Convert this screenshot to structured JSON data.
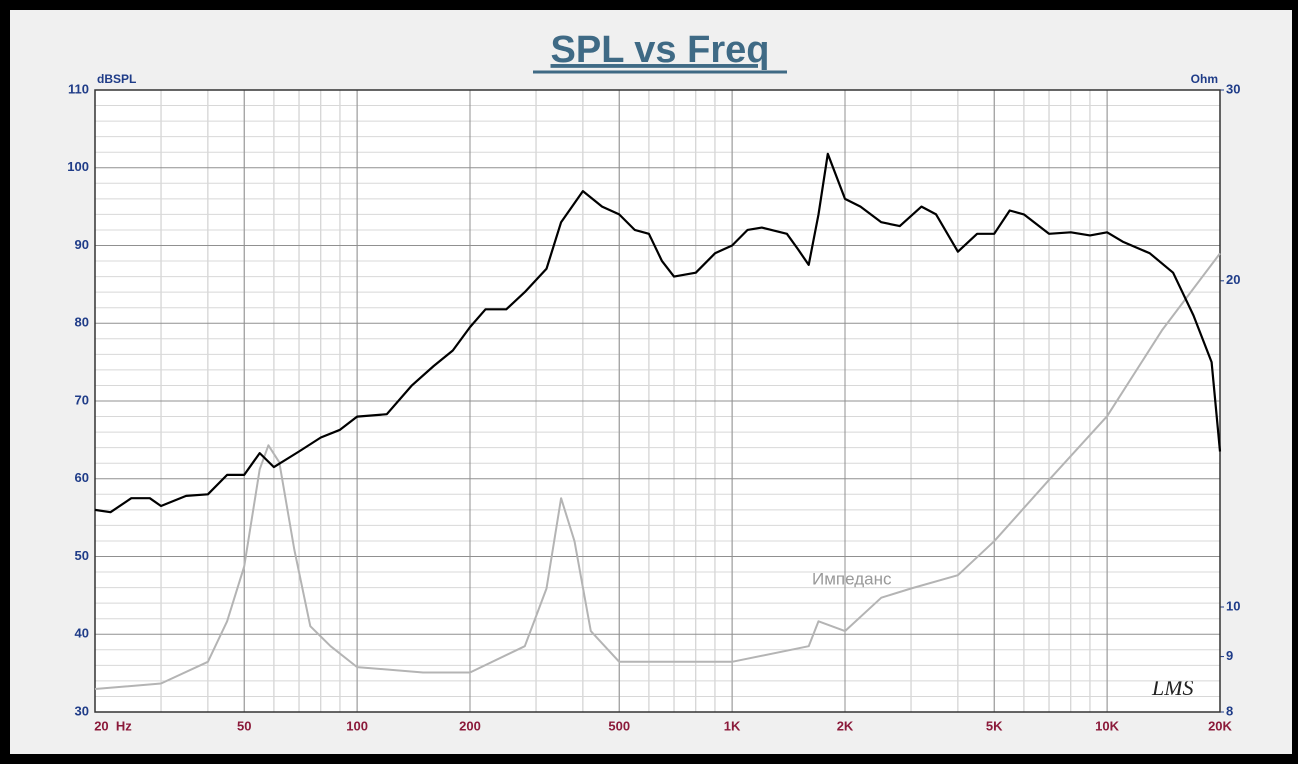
{
  "chart_data": {
    "type": "line",
    "title": "SPL vs Freq",
    "y_label": "dBSPL",
    "y2_label": "Ohm",
    "annotation": "Импеданс",
    "logo": "LMS",
    "xlog": true,
    "y2log": true,
    "grid": true,
    "xlim": [
      20,
      20000
    ],
    "xticks": [
      {
        "value": 20,
        "label": "20  Hz"
      },
      50,
      100,
      200,
      500,
      {
        "value": 1000,
        "label": "1K"
      },
      {
        "value": 2000,
        "label": "2K"
      },
      {
        "value": 5000,
        "label": "5K"
      },
      {
        "value": 10000,
        "label": "10K"
      },
      {
        "value": 20000,
        "label": "20K"
      }
    ],
    "ylim": [
      30,
      110
    ],
    "yticks": [
      30,
      40,
      50,
      60,
      70,
      80,
      90,
      100,
      110
    ],
    "y2lim": [
      8,
      30
    ],
    "y2ticks": [
      8,
      9,
      10,
      20,
      30
    ],
    "series": [
      {
        "name": "SPL",
        "color": "#000000",
        "x": [
          20,
          22,
          25,
          28,
          30,
          35,
          40,
          45,
          50,
          55,
          60,
          70,
          80,
          90,
          100,
          120,
          140,
          160,
          180,
          200,
          220,
          250,
          280,
          320,
          350,
          400,
          450,
          500,
          550,
          600,
          650,
          700,
          800,
          900,
          1000,
          1100,
          1200,
          1400,
          1500,
          1600,
          1700,
          1800,
          2000,
          2200,
          2500,
          2800,
          3200,
          3500,
          4000,
          4500,
          5000,
          5500,
          6000,
          7000,
          8000,
          9000,
          10000,
          11000,
          13000,
          15000,
          17000,
          19000,
          20000
        ],
        "values": [
          56,
          55.7,
          57.5,
          57.5,
          56.5,
          57.8,
          58,
          60.5,
          60.5,
          63.3,
          61.5,
          63.5,
          65.3,
          66.3,
          68,
          68.3,
          72,
          74.5,
          76.5,
          79.5,
          81.8,
          81.8,
          84,
          87,
          93,
          97,
          95,
          94,
          92,
          91.5,
          88,
          86,
          86.5,
          89,
          90,
          92,
          92.3,
          91.5,
          89.5,
          87.5,
          94,
          101.8,
          96,
          95,
          93,
          92.5,
          95,
          94,
          89.2,
          91.5,
          91.5,
          94.5,
          94,
          91.5,
          91.7,
          91.3,
          91.7,
          90.5,
          89,
          86.5,
          81,
          75,
          63.5
        ]
      },
      {
        "name": "Импеданс",
        "color": "#b4b4b4",
        "axis": "y2",
        "x": [
          20,
          30,
          40,
          45,
          50,
          55,
          58,
          62,
          68,
          75,
          85,
          100,
          150,
          200,
          280,
          320,
          350,
          380,
          420,
          500,
          1000,
          1600,
          1700,
          2000,
          2500,
          3000,
          4000,
          5000,
          7000,
          10000,
          14000,
          20000
        ],
        "values": [
          8.4,
          8.5,
          8.9,
          9.7,
          10.9,
          13.4,
          14.1,
          13.6,
          11.3,
          9.6,
          9.2,
          8.8,
          8.7,
          8.7,
          9.2,
          10.4,
          12.6,
          11.5,
          9.5,
          8.9,
          8.9,
          9.2,
          9.7,
          9.5,
          10.2,
          10.4,
          10.7,
          11.5,
          13.1,
          15.0,
          18.0,
          21.2
        ]
      }
    ]
  }
}
